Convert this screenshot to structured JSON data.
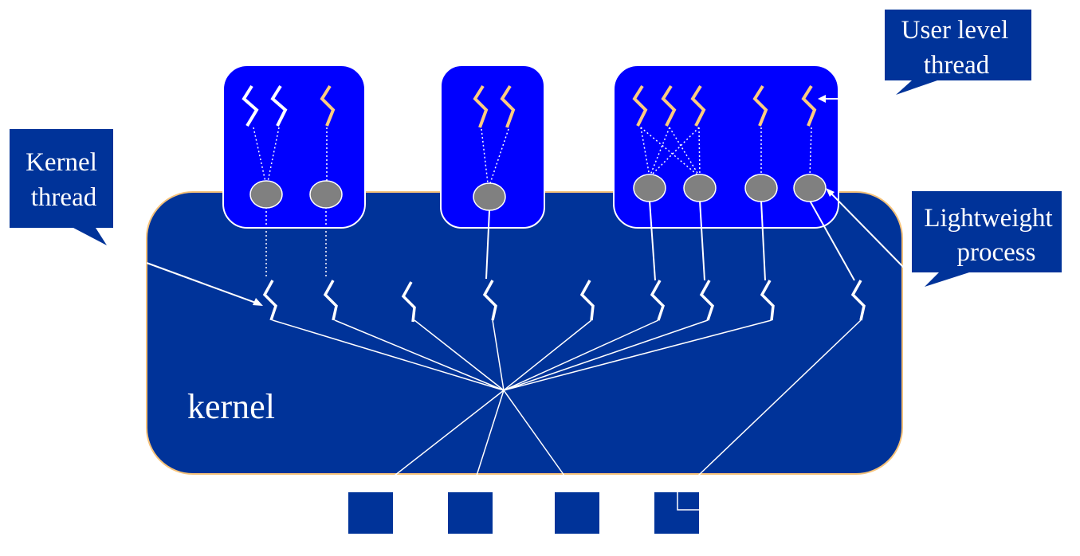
{
  "labels": {
    "kernel": "kernel",
    "kernel_thread": [
      "Kernel",
      "thread"
    ],
    "user_level_thread": [
      "User level",
      "thread"
    ],
    "lightweight_process": [
      "Lightweight",
      "process"
    ]
  },
  "colors": {
    "kernel_fill": "#003399",
    "kernel_border": "#f5c27a",
    "process_fill": "#0000ff",
    "process_border": "#ffffff",
    "lwp_fill": "#808080",
    "user_thread_white": "#ffffff",
    "user_thread_orange": "#ffcc80",
    "callout_fill": "#003399",
    "processor_fill": "#003399",
    "line": "#ffffff"
  },
  "icons": {
    "thread": "zigzag-thread-icon",
    "lwp": "gray-circle-icon",
    "processor": "square-processor-icon"
  }
}
